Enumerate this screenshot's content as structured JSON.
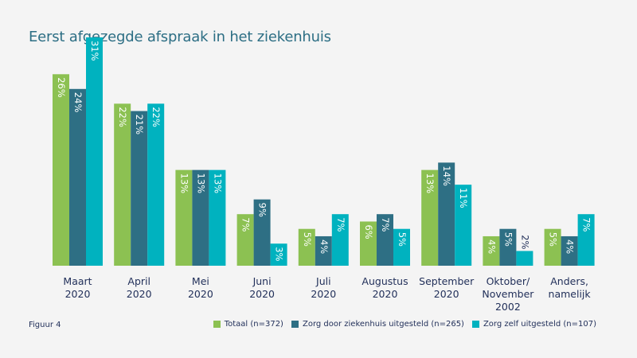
{
  "title": "Eerst afgezegde afspraak in het ziekenhuis",
  "figure_label": "Figuur 4",
  "colors": {
    "totaal": "#8cc152",
    "zorg_ziekenhuis": "#2e6f84",
    "zorg_zelf": "#00b2bf"
  },
  "chart_data": {
    "type": "bar",
    "title": "Eerst afgezegde afspraak in het ziekenhuis",
    "categories": [
      "Maart\n2020",
      "April\n2020",
      "Mei\n2020",
      "Juni\n2020",
      "Juli\n2020",
      "Augustus\n2020",
      "September\n2020",
      "Oktober/\nNovember\n2002",
      "Anders,\nnamelijk"
    ],
    "series": [
      {
        "name": "Totaal (n=372)",
        "values": [
          26,
          22,
          13,
          7,
          5,
          6,
          13,
          4,
          5
        ],
        "labels": [
          "26%",
          "22%",
          "13%",
          "7%",
          "5%",
          "6%",
          "13%",
          "4%",
          "5%"
        ]
      },
      {
        "name": "Zorg door ziekenhuis uitgesteld (n=265)",
        "values": [
          24,
          21,
          13,
          9,
          4,
          7,
          14,
          5,
          4
        ],
        "labels": [
          "24%",
          "21%",
          "13%",
          "9%",
          "4%",
          "7%",
          "14%",
          "5%",
          "4%"
        ]
      },
      {
        "name": "Zorg zelf uitgesteld (n=107)",
        "values": [
          31,
          22,
          13,
          3,
          7,
          5,
          11,
          2,
          7
        ],
        "labels": [
          "31%",
          "22%",
          "13%",
          "3%",
          "7%",
          "5%",
          "11%",
          "2%",
          "7%"
        ]
      }
    ],
    "ylim": [
      0,
      31
    ],
    "legend_position": "bottom-right",
    "grid": false
  }
}
